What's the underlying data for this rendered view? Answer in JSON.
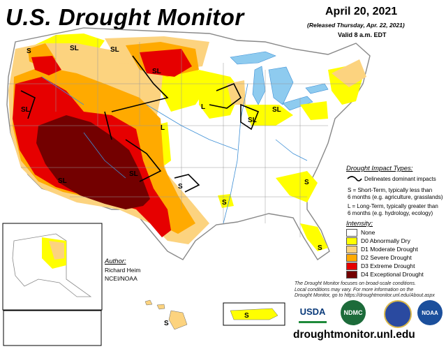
{
  "header": {
    "title": "U.S. Drought Monitor",
    "date": "April 20, 2021",
    "released": "(Released Thursday, Apr. 22, 2021)",
    "valid": "Valid 8 a.m. EDT"
  },
  "impact": {
    "heading": "Drought Impact Types:",
    "delineates": "Delineates dominant impacts",
    "short_term_1": "S = Short-Term, typically less than",
    "short_term_2": "6 months (e.g. agriculture, grasslands)",
    "long_term_1": "L = Long-Term, typically greater than",
    "long_term_2": "6 months (e.g. hydrology, ecology)"
  },
  "legend": {
    "heading": "Intensity:",
    "items": [
      {
        "label": "None",
        "color": "#ffffff"
      },
      {
        "label": "D0 Abnormally Dry",
        "color": "#ffff00"
      },
      {
        "label": "D1 Moderate Drought",
        "color": "#fcd37f"
      },
      {
        "label": "D2 Severe Drought",
        "color": "#ffaa00"
      },
      {
        "label": "D3 Extreme Drought",
        "color": "#e60000"
      },
      {
        "label": "D4 Exceptional Drought",
        "color": "#730000"
      }
    ]
  },
  "author": {
    "heading": "Author:",
    "name": "Richard Heim",
    "org": "NCEI/NOAA"
  },
  "note": {
    "line1": "The Drought Monitor focuses on broad-scale conditions.",
    "line2": "Local conditions may vary. For more information on the",
    "line3": "Drought Monitor, go to https://droughtmonitor.unl.edu/About.aspx"
  },
  "logos": [
    "USDA",
    "NDMC",
    "NOAA"
  ],
  "url": "droughtmonitor.unl.edu",
  "map_labels": {
    "sl": "SL",
    "s": "S",
    "l": "L"
  },
  "colors": {
    "water": "#8ecbef",
    "river": "#3d8fd6",
    "border": "#999999",
    "impact_line": "#000000"
  }
}
